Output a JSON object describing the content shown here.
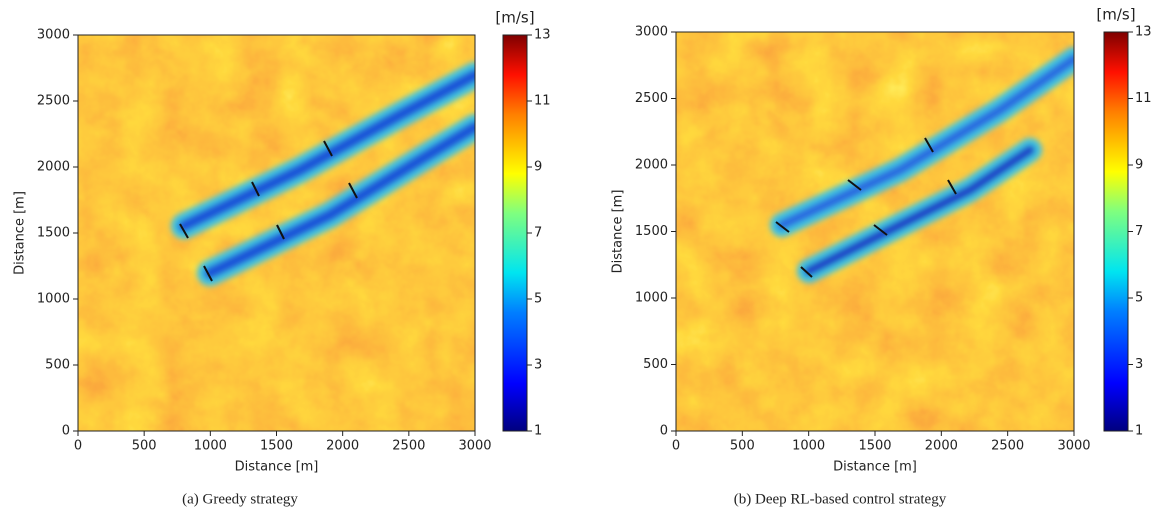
{
  "chart_data": [
    {
      "type": "heatmap",
      "caption": "(a) Greedy strategy",
      "xlabel": "Distance [m]",
      "ylabel": "Distance [m]",
      "xlim": [
        0,
        3000
      ],
      "ylim": [
        0,
        3000
      ],
      "xticks": [
        0,
        500,
        1000,
        1500,
        2000,
        2500,
        3000
      ],
      "yticks": [
        0,
        500,
        1000,
        1500,
        2000,
        2500,
        3000
      ],
      "colorbar": {
        "label": "[m/s]",
        "lim": [
          1,
          13
        ],
        "ticks": [
          1,
          3,
          5,
          7,
          9,
          11,
          13
        ]
      }
    },
    {
      "type": "heatmap",
      "caption": "(b) Deep RL-based control strategy",
      "xlabel": "Distance [m]",
      "ylabel": "Distance [m]",
      "xlim": [
        0,
        3000
      ],
      "ylim": [
        0,
        3000
      ],
      "xticks": [
        0,
        500,
        1000,
        1500,
        2000,
        2500,
        3000
      ],
      "yticks": [
        0,
        500,
        1000,
        1500,
        2000,
        2500,
        3000
      ],
      "colorbar": {
        "label": "[m/s]",
        "lim": [
          1,
          13
        ],
        "ticks": [
          1,
          3,
          5,
          7,
          9,
          11,
          13
        ]
      }
    }
  ]
}
